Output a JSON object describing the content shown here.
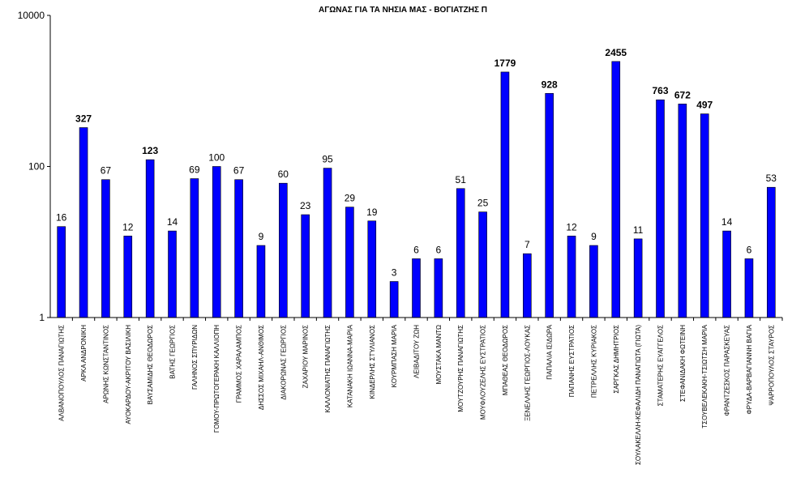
{
  "chart_data": {
    "type": "bar",
    "title": "ΑΓΩΝΑΣ ΓΙΑ ΤΑ ΝΗΣΙΑ ΜΑΣ - ΒΟΓΙΑΤΖΗΣ Π",
    "xlabel": "",
    "ylabel": "",
    "y_scale": "log",
    "ylim": [
      1,
      10000
    ],
    "yticks": [
      1,
      100,
      10000
    ],
    "ytick_labels": [
      "1",
      "100",
      "10000"
    ],
    "grid": false,
    "bar_color": "#0000FF",
    "categories": [
      "ΑΛΒΑΝΟΠΟΥΛΟΣ ΠΑΝΑΓΙΩΤΗΣ",
      "ΑΡΚΑ ΑΝΔΡΟΝΙΚΗ",
      "ΑΡΩΝΗΣ ΚΩΝΣΤΑΝΤΙΝΟΣ",
      "ΑΥΟΚΑΡΔΟΥ-ΑΚΡΙΤΟΥ ΒΑΣΙΛΙΚΗ",
      "ΒΑΥΣΑΜΙΔΗΣ ΘΕΟΔΩΡΟΣ",
      "ΒΑΤΗΣ ΓΕΩΡΓΙΟΣ",
      "ΓΑΛΗΝΟΣ ΣΠΥΡΙΔΩΝ",
      "ΓΟΜΟΥ-ΠΡΩΤΟΓΕΡΑΚΗ ΚΑΛΛΙΟΠΗ",
      "ΓΡΑΜΜΟΣ ΧΑΡΑΛΑΜΠΟΣ",
      "ΔΗΣΣΟΣ ΜΙΧΑΗΛ-ΑΝΘΙΜΟΣ",
      "ΔΙΑΚΟΡΩΝΑΣ ΓΕΩΡΓΙΟΣ",
      "ΖΑΧΑΡΙΟΥ ΜΑΡΙΝΟΣ",
      "ΚΑΛΛΟΝΙΑΤΗΣ ΠΑΝΑΓΙΩΤΗΣ",
      "ΚΑΤΑΝΑΚΗ ΙΩΑΝΝΑ-ΜΑΡΙΑ",
      "ΚΙΝΔΕΡΛΗΣ ΣΤΥΛΙΑΝΟΣ",
      "ΚΟΥΡΜΠΑΣΗ ΜΑΡΙΑ",
      "ΛΕΙΒΑΔΙΤΟΥ ΖΩΗ",
      "ΜΟΥΣΤΑΚΑ ΜΑΝΤΩ",
      "ΜΟΥΤΖΟΥΡΗΣ ΠΑΝΑΓΙΩΤΗΣ",
      "ΜΟΥΦΛΟΥΖΕΛΗΣ ΕΥΣΤΡΑΤΙΟΣ",
      "ΜΠΑΘΕΑΣ ΘΕΟΔΩΡΟΣ",
      "ΞΕΝΕΛΛΗΣ ΓΕΩΡΓΙΟΣ-ΛΟΥΚΑΣ",
      "ΠΑΠΑΛΙΑ ΙΣΙΔΩΡΑ",
      "ΠΑΠΑΝΗΣ ΕΥΣΤΡΑΤΙΟΣ",
      "ΠΕΤΡΕΛΛΗΣ ΚΥΡΙΑΚΟΣ",
      "ΣΑΡΓΚΑΣ ΔΗΜΗΤΡΙΟΣ",
      "ΣΟΥΛΑΚΕΛΛΗ-ΚΕΦΑΛΙΔΗ ΠΑΝΑΓΙΩΤΑ (ΓΙΩΤΑ)",
      "ΣΤΑΜΑΤΕΡΗΣ ΕΥΑΓΓΕΛΟΣ",
      "ΣΤΕΦΑΝΙΔΑΚΗ ΦΩΤΕΙΝΗ",
      "ΤΣΟΥΒΕΛΕΚΑΚΗ-ΤΣΙΩΤΣΗ ΜΑΡΙΑ",
      "ΦΡΑΝΤΖΕΣΚΟΣ ΠΑΡΑΣΚΕΥΑΣ",
      "ΦΡΥΔΑ-ΒΑΡΒΑΓΙΑΝΝΗ ΒΑΓΙΑ",
      "ΨΑΡΡΟΠΟΥΛΟΣ ΣΤΑΥΡΟΣ"
    ],
    "values": [
      16,
      327,
      67,
      12,
      123,
      14,
      69,
      100,
      67,
      9,
      60,
      23,
      95,
      29,
      19,
      3,
      6,
      6,
      51,
      25,
      1779,
      7,
      928,
      12,
      9,
      2455,
      11,
      763,
      672,
      497,
      14,
      6,
      53
    ],
    "bold_value_labels": [
      327,
      123,
      1779,
      928,
      2455,
      763,
      672,
      497
    ]
  }
}
